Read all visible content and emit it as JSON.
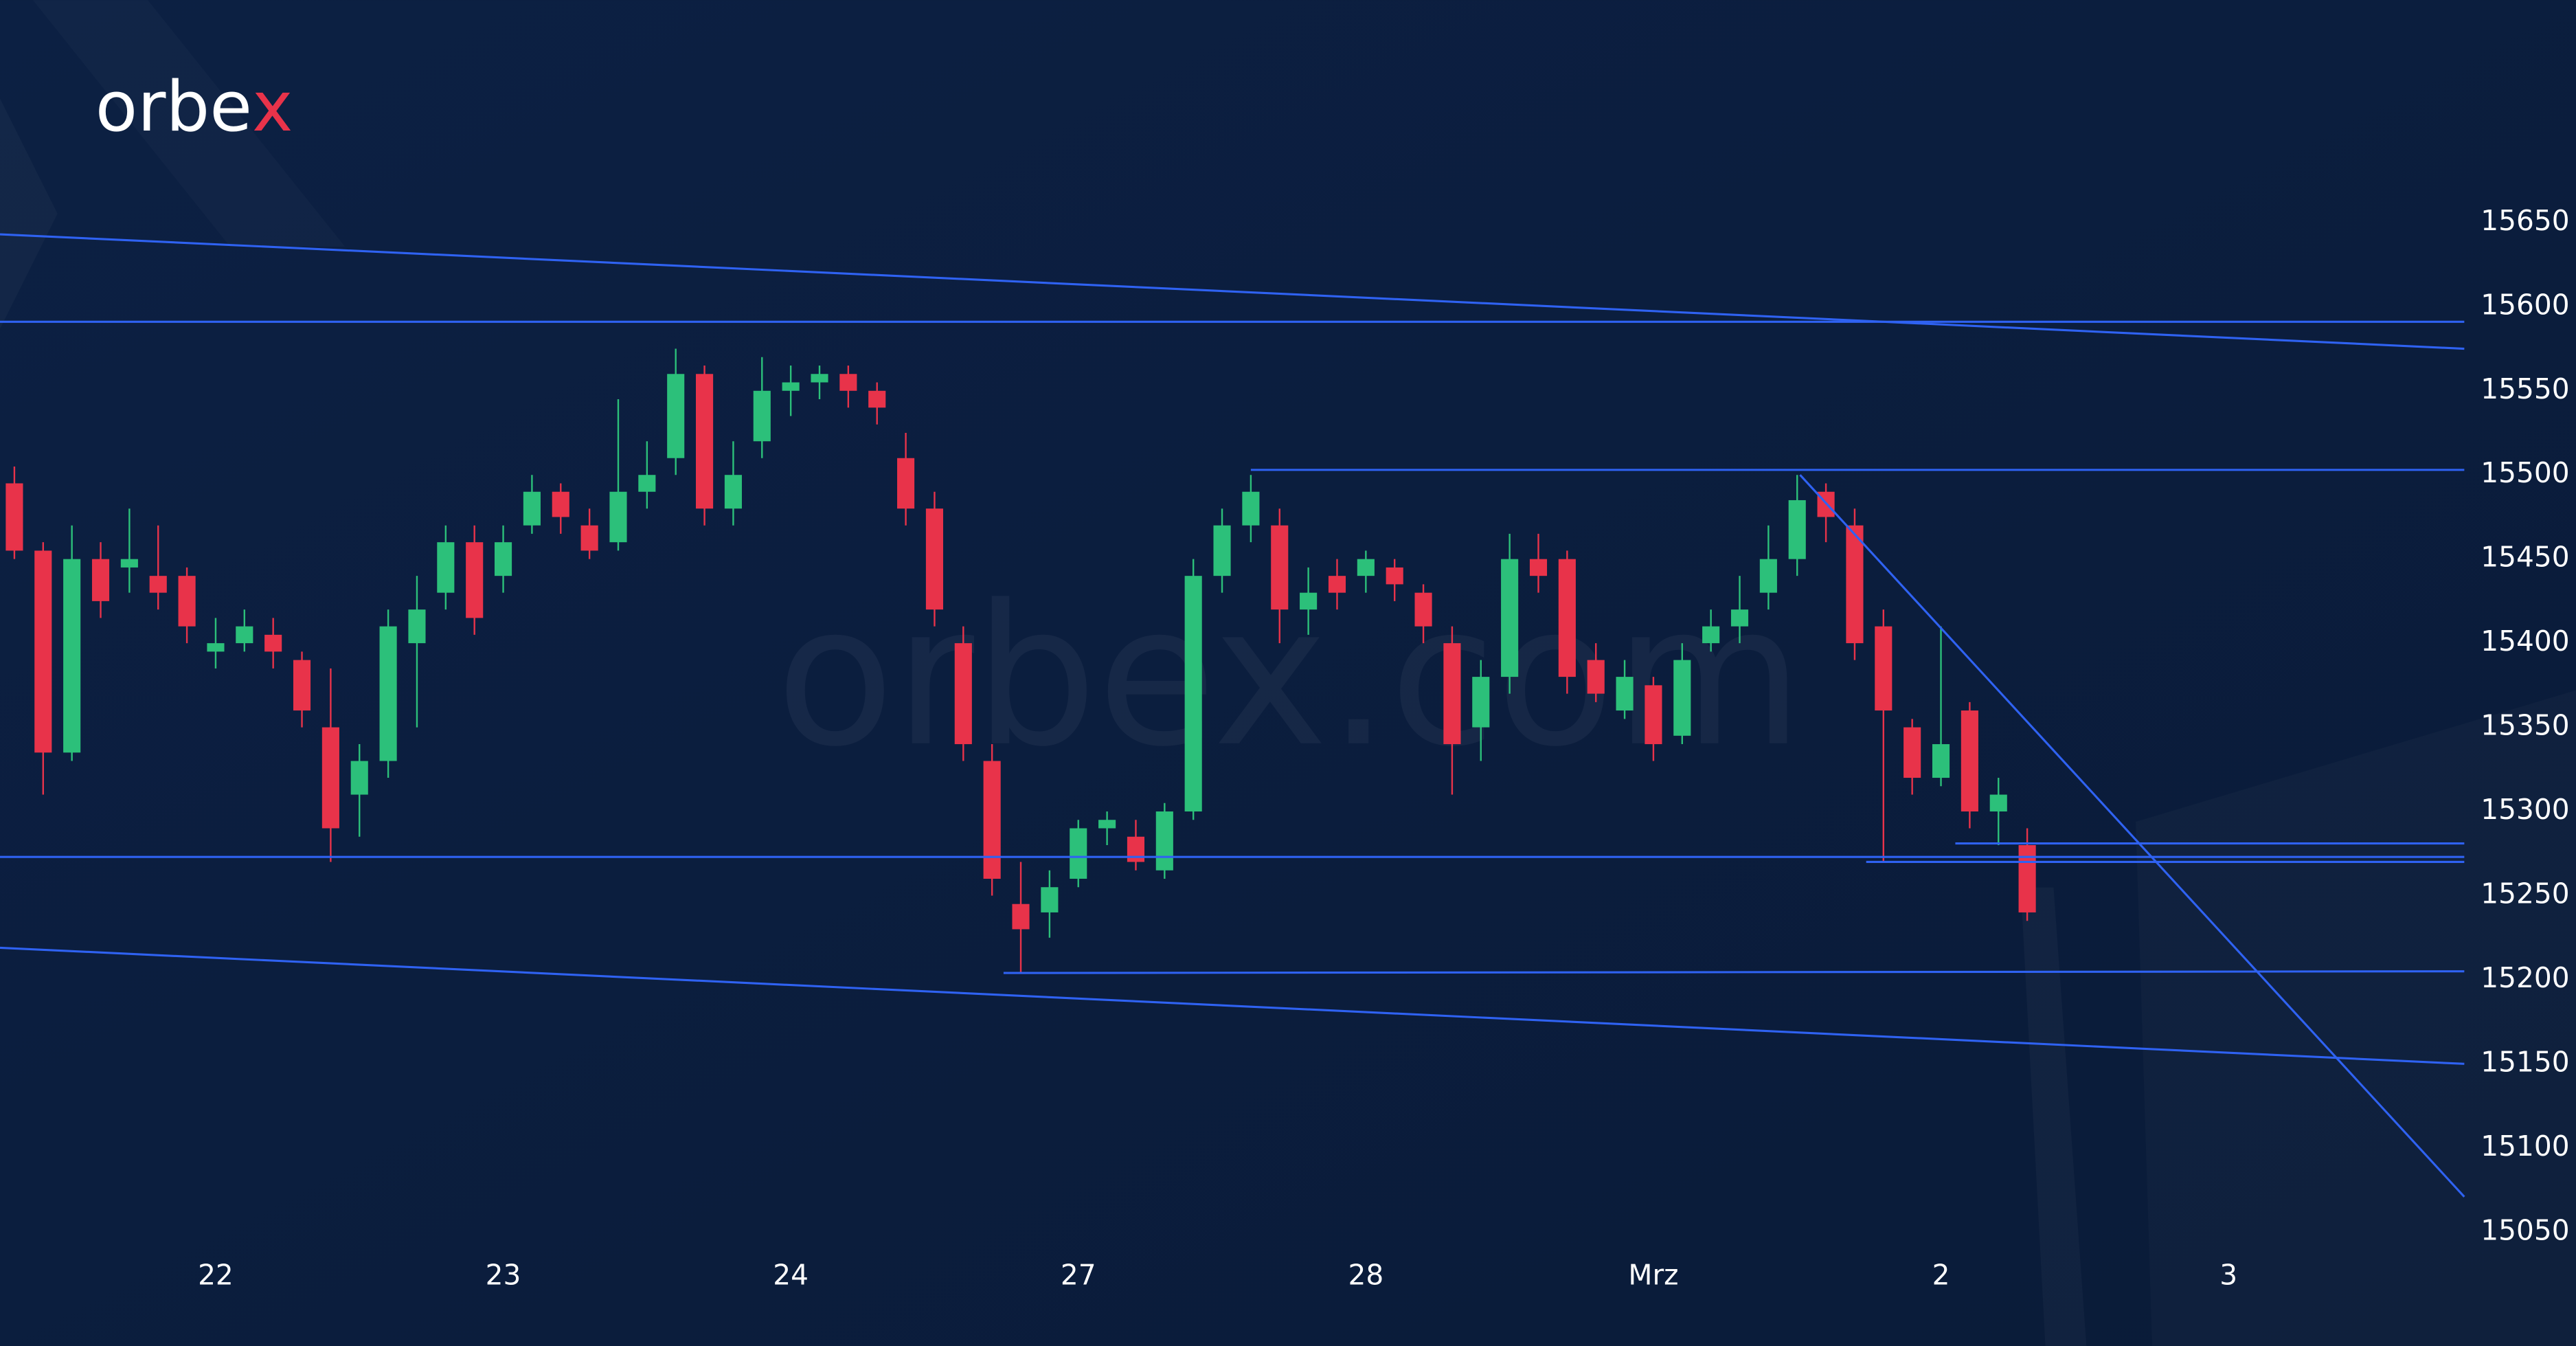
{
  "chart_data": {
    "type": "candlestick",
    "logo": "orbex",
    "watermark": "orbex.com",
    "up_color": "#2cc07a",
    "down_color": "#e8334a",
    "line_color": "#2f62f2",
    "xlim": [
      -0.75,
      7.82
    ],
    "ylim": [
      15040,
      15665
    ],
    "xticks": [
      {
        "value": 0,
        "label": "22"
      },
      {
        "value": 1,
        "label": "23"
      },
      {
        "value": 2,
        "label": "24"
      },
      {
        "value": 3,
        "label": "27"
      },
      {
        "value": 4,
        "label": "28"
      },
      {
        "value": 5,
        "label": "Mrz"
      },
      {
        "value": 6,
        "label": "2"
      },
      {
        "value": 7,
        "label": "3"
      }
    ],
    "yticks": [
      15050,
      15100,
      15150,
      15200,
      15250,
      15300,
      15350,
      15400,
      15450,
      15500,
      15550,
      15600,
      15650
    ],
    "x": [
      -0.7,
      -0.6,
      -0.5,
      -0.4,
      -0.3,
      -0.2,
      -0.1,
      0,
      0.1,
      0.2,
      0.3,
      0.4,
      0.5,
      0.6,
      0.7,
      0.8,
      0.9,
      1,
      1.1,
      1.2,
      1.3,
      1.4,
      1.5,
      1.6,
      1.7,
      1.8,
      1.9,
      2,
      2.1,
      2.2,
      2.3,
      2.4,
      2.5,
      2.6,
      2.7,
      2.8,
      2.9,
      3,
      3.1,
      3.2,
      3.3,
      3.4,
      3.5,
      3.6,
      3.7,
      3.8,
      3.9,
      4,
      4.1,
      4.2,
      4.3,
      4.4,
      4.5,
      4.6,
      4.7,
      4.8,
      4.9,
      5,
      5.1,
      5.2,
      5.3,
      5.4,
      5.5,
      5.6,
      5.7,
      5.8,
      5.9,
      6,
      6.1,
      6.2,
      6.3
    ],
    "open": [
      15495,
      15455,
      15335,
      15450,
      15445,
      15440,
      15440,
      15395,
      15400,
      15405,
      15390,
      15350,
      15310,
      15330,
      15400,
      15430,
      15460,
      15440,
      15470,
      15490,
      15470,
      15460,
      15490,
      15510,
      15560,
      15480,
      15520,
      15550,
      15555,
      15560,
      15550,
      15510,
      15480,
      15400,
      15330,
      15245,
      15240,
      15260,
      15290,
      15285,
      15265,
      15300,
      15440,
      15470,
      15470,
      15420,
      15440,
      15440,
      15445,
      15430,
      15400,
      15350,
      15380,
      15450,
      15450,
      15390,
      15360,
      15375,
      15345,
      15400,
      15410,
      15430,
      15450,
      15490,
      15470,
      15410,
      15350,
      15320,
      15360,
      15300,
      15280
    ],
    "high": [
      15505,
      15460,
      15470,
      15460,
      15480,
      15470,
      15445,
      15415,
      15420,
      15415,
      15395,
      15385,
      15340,
      15420,
      15440,
      15470,
      15470,
      15470,
      15500,
      15495,
      15480,
      15545,
      15520,
      15575,
      15565,
      15520,
      15570,
      15565,
      15565,
      15565,
      15555,
      15525,
      15490,
      15410,
      15340,
      15270,
      15265,
      15295,
      15300,
      15295,
      15305,
      15450,
      15480,
      15500,
      15480,
      15445,
      15450,
      15455,
      15450,
      15435,
      15410,
      15390,
      15465,
      15465,
      15455,
      15400,
      15390,
      15380,
      15400,
      15420,
      15440,
      15470,
      15500,
      15495,
      15480,
      15420,
      15355,
      15410,
      15365,
      15320,
      15290
    ],
    "low": [
      15450,
      15310,
      15330,
      15415,
      15430,
      15420,
      15400,
      15385,
      15395,
      15385,
      15350,
      15270,
      15285,
      15320,
      15350,
      15420,
      15405,
      15430,
      15465,
      15465,
      15450,
      15455,
      15480,
      15500,
      15470,
      15470,
      15510,
      15535,
      15545,
      15540,
      15530,
      15470,
      15410,
      15330,
      15250,
      15204,
      15225,
      15255,
      15280,
      15265,
      15260,
      15295,
      15430,
      15460,
      15400,
      15405,
      15420,
      15430,
      15425,
      15400,
      15310,
      15330,
      15370,
      15430,
      15370,
      15365,
      15355,
      15330,
      15340,
      15395,
      15400,
      15420,
      15440,
      15460,
      15390,
      15270,
      15310,
      15315,
      15290,
      15280,
      15235
    ],
    "close": [
      15455,
      15335,
      15450,
      15425,
      15450,
      15430,
      15410,
      15400,
      15410,
      15395,
      15360,
      15290,
      15330,
      15410,
      15420,
      15460,
      15415,
      15460,
      15490,
      15475,
      15455,
      15490,
      15500,
      15560,
      15480,
      15500,
      15550,
      15555,
      15560,
      15550,
      15540,
      15480,
      15420,
      15340,
      15260,
      15230,
      15255,
      15290,
      15295,
      15270,
      15300,
      15440,
      15470,
      15490,
      15420,
      15430,
      15430,
      15450,
      15435,
      15410,
      15340,
      15380,
      15450,
      15440,
      15380,
      15370,
      15380,
      15340,
      15390,
      15410,
      15420,
      15450,
      15485,
      15475,
      15400,
      15360,
      15320,
      15340,
      15300,
      15310,
      15240
    ],
    "trendlines": [
      {
        "x": [
          -0.75,
          7.82
        ],
        "y": [
          15643,
          15575
        ]
      },
      {
        "x": [
          -0.75,
          7.82
        ],
        "y": [
          15591,
          15591
        ]
      },
      {
        "x": [
          3.6,
          7.82
        ],
        "y": [
          15503,
          15503
        ]
      },
      {
        "x": [
          -0.75,
          7.82
        ],
        "y": [
          15273,
          15273
        ]
      },
      {
        "x": [
          5.74,
          7.82
        ],
        "y": [
          15270,
          15270
        ]
      },
      {
        "x": [
          6.05,
          7.82
        ],
        "y": [
          15281,
          15281
        ]
      },
      {
        "x": [
          2.74,
          7.82
        ],
        "y": [
          15204,
          15205
        ]
      },
      {
        "x": [
          -0.75,
          7.82
        ],
        "y": [
          15219,
          15150
        ]
      },
      {
        "x": [
          5.51,
          7.82
        ],
        "y": [
          15500,
          15071
        ]
      }
    ]
  }
}
